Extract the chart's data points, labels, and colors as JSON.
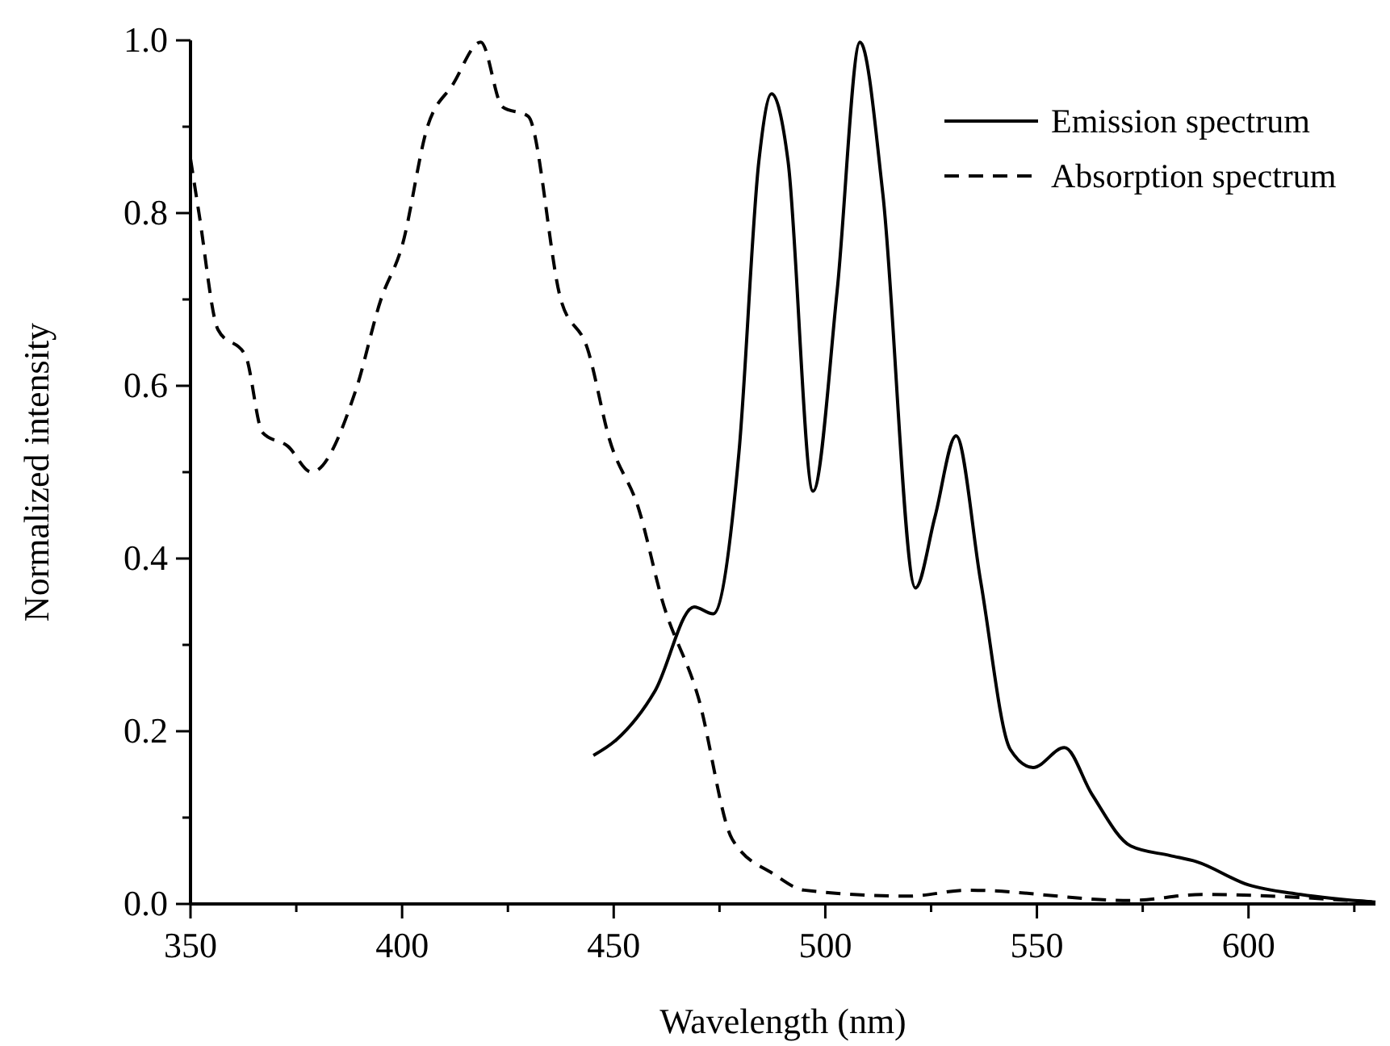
{
  "chart_data": {
    "type": "line",
    "xlabel": "Wavelength (nm)",
    "ylabel": "Normalized intensity",
    "xlim": [
      350,
      630
    ],
    "xticks": [
      350,
      {
        "value": 375,
        "label": null
      },
      400,
      {
        "value": 425,
        "label": null
      },
      450,
      {
        "value": 475,
        "label": null
      },
      500,
      {
        "value": 525,
        "label": null
      },
      550,
      {
        "value": 575,
        "label": null
      },
      600,
      {
        "value": 625,
        "label": null
      }
    ],
    "ylim": [
      0,
      1.0
    ],
    "yticks": [
      {
        "value": 0,
        "label": "0.0"
      },
      {
        "value": 0.1,
        "label": null
      },
      {
        "value": 0.2,
        "label": "0.2"
      },
      {
        "value": 0.3,
        "label": null
      },
      {
        "value": 0.4,
        "label": "0.4"
      },
      {
        "value": 0.5,
        "label": null
      },
      {
        "value": 0.6,
        "label": "0.6"
      },
      {
        "value": 0.7,
        "label": null
      },
      {
        "value": 0.8,
        "label": "0.8"
      },
      {
        "value": 0.9,
        "label": null
      },
      {
        "value": 1.0,
        "label": "1.0"
      }
    ],
    "grid": false,
    "legend": "top right",
    "marker": "none",
    "series": [
      {
        "name": "Emission spectrum",
        "color": "#000000",
        "line_style": "solid",
        "x": [
          445.2,
          450.6,
          459.8,
          469,
          473.5,
          479.6,
          484.3,
          487.3,
          491.2,
          497.1,
          502.8,
          508.2,
          513.6,
          521.3,
          525.9,
          530.9,
          536.7,
          543.7,
          549.1,
          556.5,
          563,
          572.2,
          581.5,
          587.7,
          600,
          612.3,
          630
        ],
        "values": [
          0.172,
          0.19,
          0.247,
          0.344,
          0.336,
          0.523,
          0.86,
          0.938,
          0.86,
          0.478,
          0.71,
          0.998,
          0.822,
          0.366,
          0.448,
          0.542,
          0.374,
          0.179,
          0.158,
          0.181,
          0.127,
          0.067,
          0.056,
          0.049,
          0.022,
          0.011,
          0.002
        ]
      },
      {
        "name": "Absorption spectrum",
        "color": "#000000",
        "line_style": "dashed",
        "x": [
          350,
          352,
          356.5,
          363,
          367,
          373,
          378.6,
          389,
          395,
          400,
          406,
          412,
          418.6,
          423.7,
          429.8,
          437.5,
          443.8,
          449,
          456,
          461.5,
          470,
          478,
          488,
          495,
          519.8,
          533.6,
          572,
          589,
          630
        ],
        "values": [
          0.863,
          0.8,
          0.665,
          0.635,
          0.546,
          0.53,
          0.5,
          0.594,
          0.7,
          0.762,
          0.9,
          0.949,
          0.998,
          0.923,
          0.912,
          0.7,
          0.643,
          0.538,
          0.456,
          0.351,
          0.239,
          0.075,
          0.034,
          0.016,
          0.009,
          0.016,
          0.004,
          0.011,
          0.002
        ]
      }
    ]
  }
}
